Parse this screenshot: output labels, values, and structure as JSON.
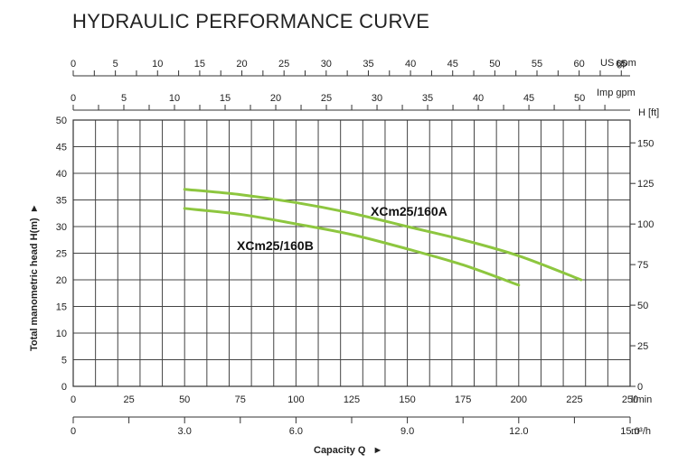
{
  "chart_data": {
    "type": "line",
    "title": "HYDRAULIC PERFORMANCE CURVE",
    "xlabel": "Capacity Q",
    "ylabel": "Total manometric head H(m)",
    "grid": true,
    "legend": "none",
    "xlim": [
      0,
      250
    ],
    "ylim": [
      0,
      50
    ],
    "x_axes": {
      "primary": {
        "unit": "l/min",
        "ticks": [
          "0",
          "25",
          "50",
          "75",
          "100",
          "125",
          "150",
          "175",
          "200",
          "225",
          "250"
        ]
      },
      "bottom_secondary": {
        "unit": "m³/h",
        "ticks": [
          "0",
          "3.0",
          "6.0",
          "9.0",
          "12.0",
          "15.0"
        ]
      },
      "top_us": {
        "unit": "US gpm",
        "ticks": [
          "0",
          "5",
          "10",
          "15",
          "20",
          "25",
          "30",
          "35",
          "40",
          "45",
          "50",
          "55",
          "60",
          "65"
        ]
      },
      "top_imp": {
        "unit": "Imp gpm",
        "ticks": [
          "0",
          "5",
          "10",
          "15",
          "20",
          "25",
          "30",
          "35",
          "40",
          "45",
          "50"
        ]
      }
    },
    "y_axes": {
      "left": {
        "unit": "m",
        "ticks": [
          "0",
          "5",
          "10",
          "15",
          "20",
          "25",
          "30",
          "35",
          "40",
          "45",
          "50"
        ]
      },
      "right": {
        "unit": "H [ft]",
        "ticks": [
          "0",
          "25",
          "50",
          "75",
          "100",
          "125",
          "150"
        ]
      }
    },
    "series": [
      {
        "name": "XCm25/160A",
        "x": [
          50,
          75,
          100,
          125,
          150,
          175,
          200,
          228
        ],
        "y": [
          37,
          36,
          34.5,
          32.5,
          30,
          27.5,
          24.5,
          20
        ]
      },
      {
        "name": "XCm25/160B",
        "x": [
          50,
          75,
          100,
          125,
          150,
          175,
          200
        ],
        "y": [
          33.4,
          32.3,
          30.5,
          28.5,
          25.8,
          22.8,
          19
        ]
      }
    ],
    "colors": {
      "curve": "#8dc63f",
      "grid": "#444444",
      "axis": "#333333"
    }
  }
}
